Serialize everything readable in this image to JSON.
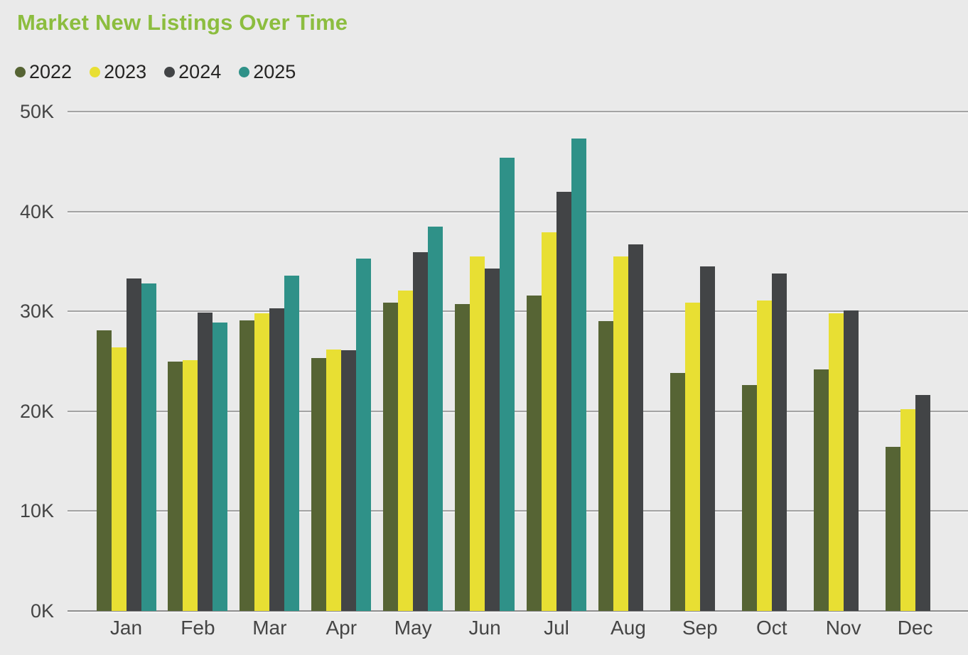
{
  "title": "Market New Listings Over Time",
  "colors": {
    "background": "#EAEAEA",
    "title": "#8CBD3F",
    "gridline": "#A4A4A4",
    "axis_text": "#454545",
    "legend_text": "#252423",
    "series_2022": "#566434",
    "series_2023": "#E8DF33",
    "series_2024": "#424446",
    "series_2025": "#2F9188"
  },
  "legend": {
    "position": "top-left",
    "items": [
      {
        "label": "2022",
        "color": "#566434"
      },
      {
        "label": "2023",
        "color": "#E8DF33"
      },
      {
        "label": "2024",
        "color": "#424446"
      },
      {
        "label": "2025",
        "color": "#2F9188"
      }
    ]
  },
  "chart_data": {
    "type": "bar",
    "title": "Market New Listings Over Time",
    "categories": [
      "Jan",
      "Feb",
      "Mar",
      "Apr",
      "May",
      "Jun",
      "Jul",
      "Aug",
      "Sep",
      "Oct",
      "Nov",
      "Dec"
    ],
    "series": [
      {
        "name": "2022",
        "color": "#566434",
        "values": [
          28.1,
          25.0,
          29.1,
          25.3,
          30.9,
          30.7,
          31.6,
          29.0,
          23.8,
          22.6,
          24.2,
          16.4
        ]
      },
      {
        "name": "2023",
        "color": "#E8DF33",
        "values": [
          26.4,
          25.1,
          29.8,
          26.2,
          32.1,
          35.5,
          37.9,
          35.5,
          30.9,
          31.1,
          29.8,
          20.2
        ]
      },
      {
        "name": "2024",
        "color": "#424446",
        "values": [
          33.3,
          29.9,
          30.3,
          26.1,
          35.9,
          34.3,
          42.0,
          36.7,
          34.5,
          33.8,
          30.1,
          21.6
        ]
      },
      {
        "name": "2025",
        "color": "#2F9188",
        "values": [
          32.8,
          28.9,
          33.6,
          35.3,
          38.5,
          45.4,
          47.3,
          null,
          null,
          null,
          null,
          null
        ]
      }
    ],
    "unit": "K",
    "value_axis": {
      "ylim": [
        0,
        50
      ],
      "tick_values": [
        0,
        10,
        20,
        30,
        40,
        50
      ],
      "tick_labels": [
        "0K",
        "10K",
        "20K",
        "30K",
        "40K",
        "50K"
      ]
    },
    "grid": true,
    "legend_position": "top-left"
  }
}
